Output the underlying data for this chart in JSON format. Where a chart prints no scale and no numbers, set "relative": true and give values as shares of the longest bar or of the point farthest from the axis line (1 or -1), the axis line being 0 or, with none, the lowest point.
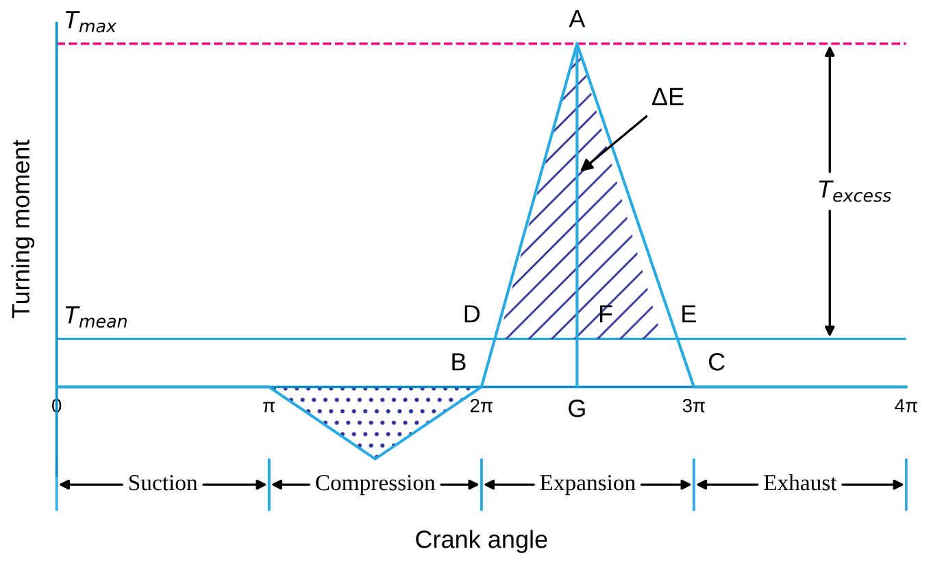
{
  "chart_data": {
    "type": "line",
    "relative": true,
    "xlabel": "Crank angle",
    "ylabel": "Turning moment",
    "xlim": [
      0,
      12.566
    ],
    "xticks": [
      0,
      {
        "value": 3.1416,
        "label": "π"
      },
      {
        "value": 6.2832,
        "label": "2π"
      },
      {
        "value": 9.4248,
        "label": "3π"
      },
      {
        "value": 12.566,
        "label": "4π"
      }
    ],
    "series": [
      {
        "color": "#29abe2",
        "x": [
          0,
          3.1416,
          4.712,
          6.2832,
          7.697,
          9.4248,
          12.566
        ],
        "values": [
          0,
          0,
          -0.21,
          0,
          1,
          0,
          0
        ]
      },
      {
        "color": "#29abe2",
        "x": [
          7.697,
          7.697
        ],
        "values": [
          0,
          1
        ]
      },
      {
        "type": "area",
        "color": "#2e3192",
        "x": [
          6.535,
          7.697,
          8.954
        ],
        "values": [
          0.14,
          1,
          0.14
        ]
      },
      {
        "type": "area",
        "color": "#2e3192",
        "x": [
          3.1416,
          4.712,
          6.2832
        ],
        "values": [
          0,
          -0.21,
          0
        ]
      }
    ],
    "ref_lines": [
      {
        "axis": "y",
        "value": 1,
        "label": "T$_{max}$",
        "color": "#e6007e",
        "line_style": "dashed"
      },
      {
        "axis": "y",
        "value": 0.14,
        "label": "T$_{mean}$",
        "color": "#29abe2",
        "line_style": "solid"
      }
    ],
    "annotations": [
      {
        "text": "A",
        "x": 7.697,
        "y": 1
      },
      {
        "text": "B",
        "x": 6.2832,
        "y": 0
      },
      {
        "text": "C",
        "x": 9.4248,
        "y": 0
      },
      {
        "text": "D",
        "x": 6.535,
        "y": 0.14
      },
      {
        "text": "E",
        "x": 8.954,
        "y": 0.14
      },
      {
        "text": "F",
        "x": 7.697,
        "y": 0.14
      },
      "G",
      "ΔE",
      "T$_{excess}$",
      "Suction",
      "Compression",
      "Expansion",
      "Exhaust"
    ]
  }
}
